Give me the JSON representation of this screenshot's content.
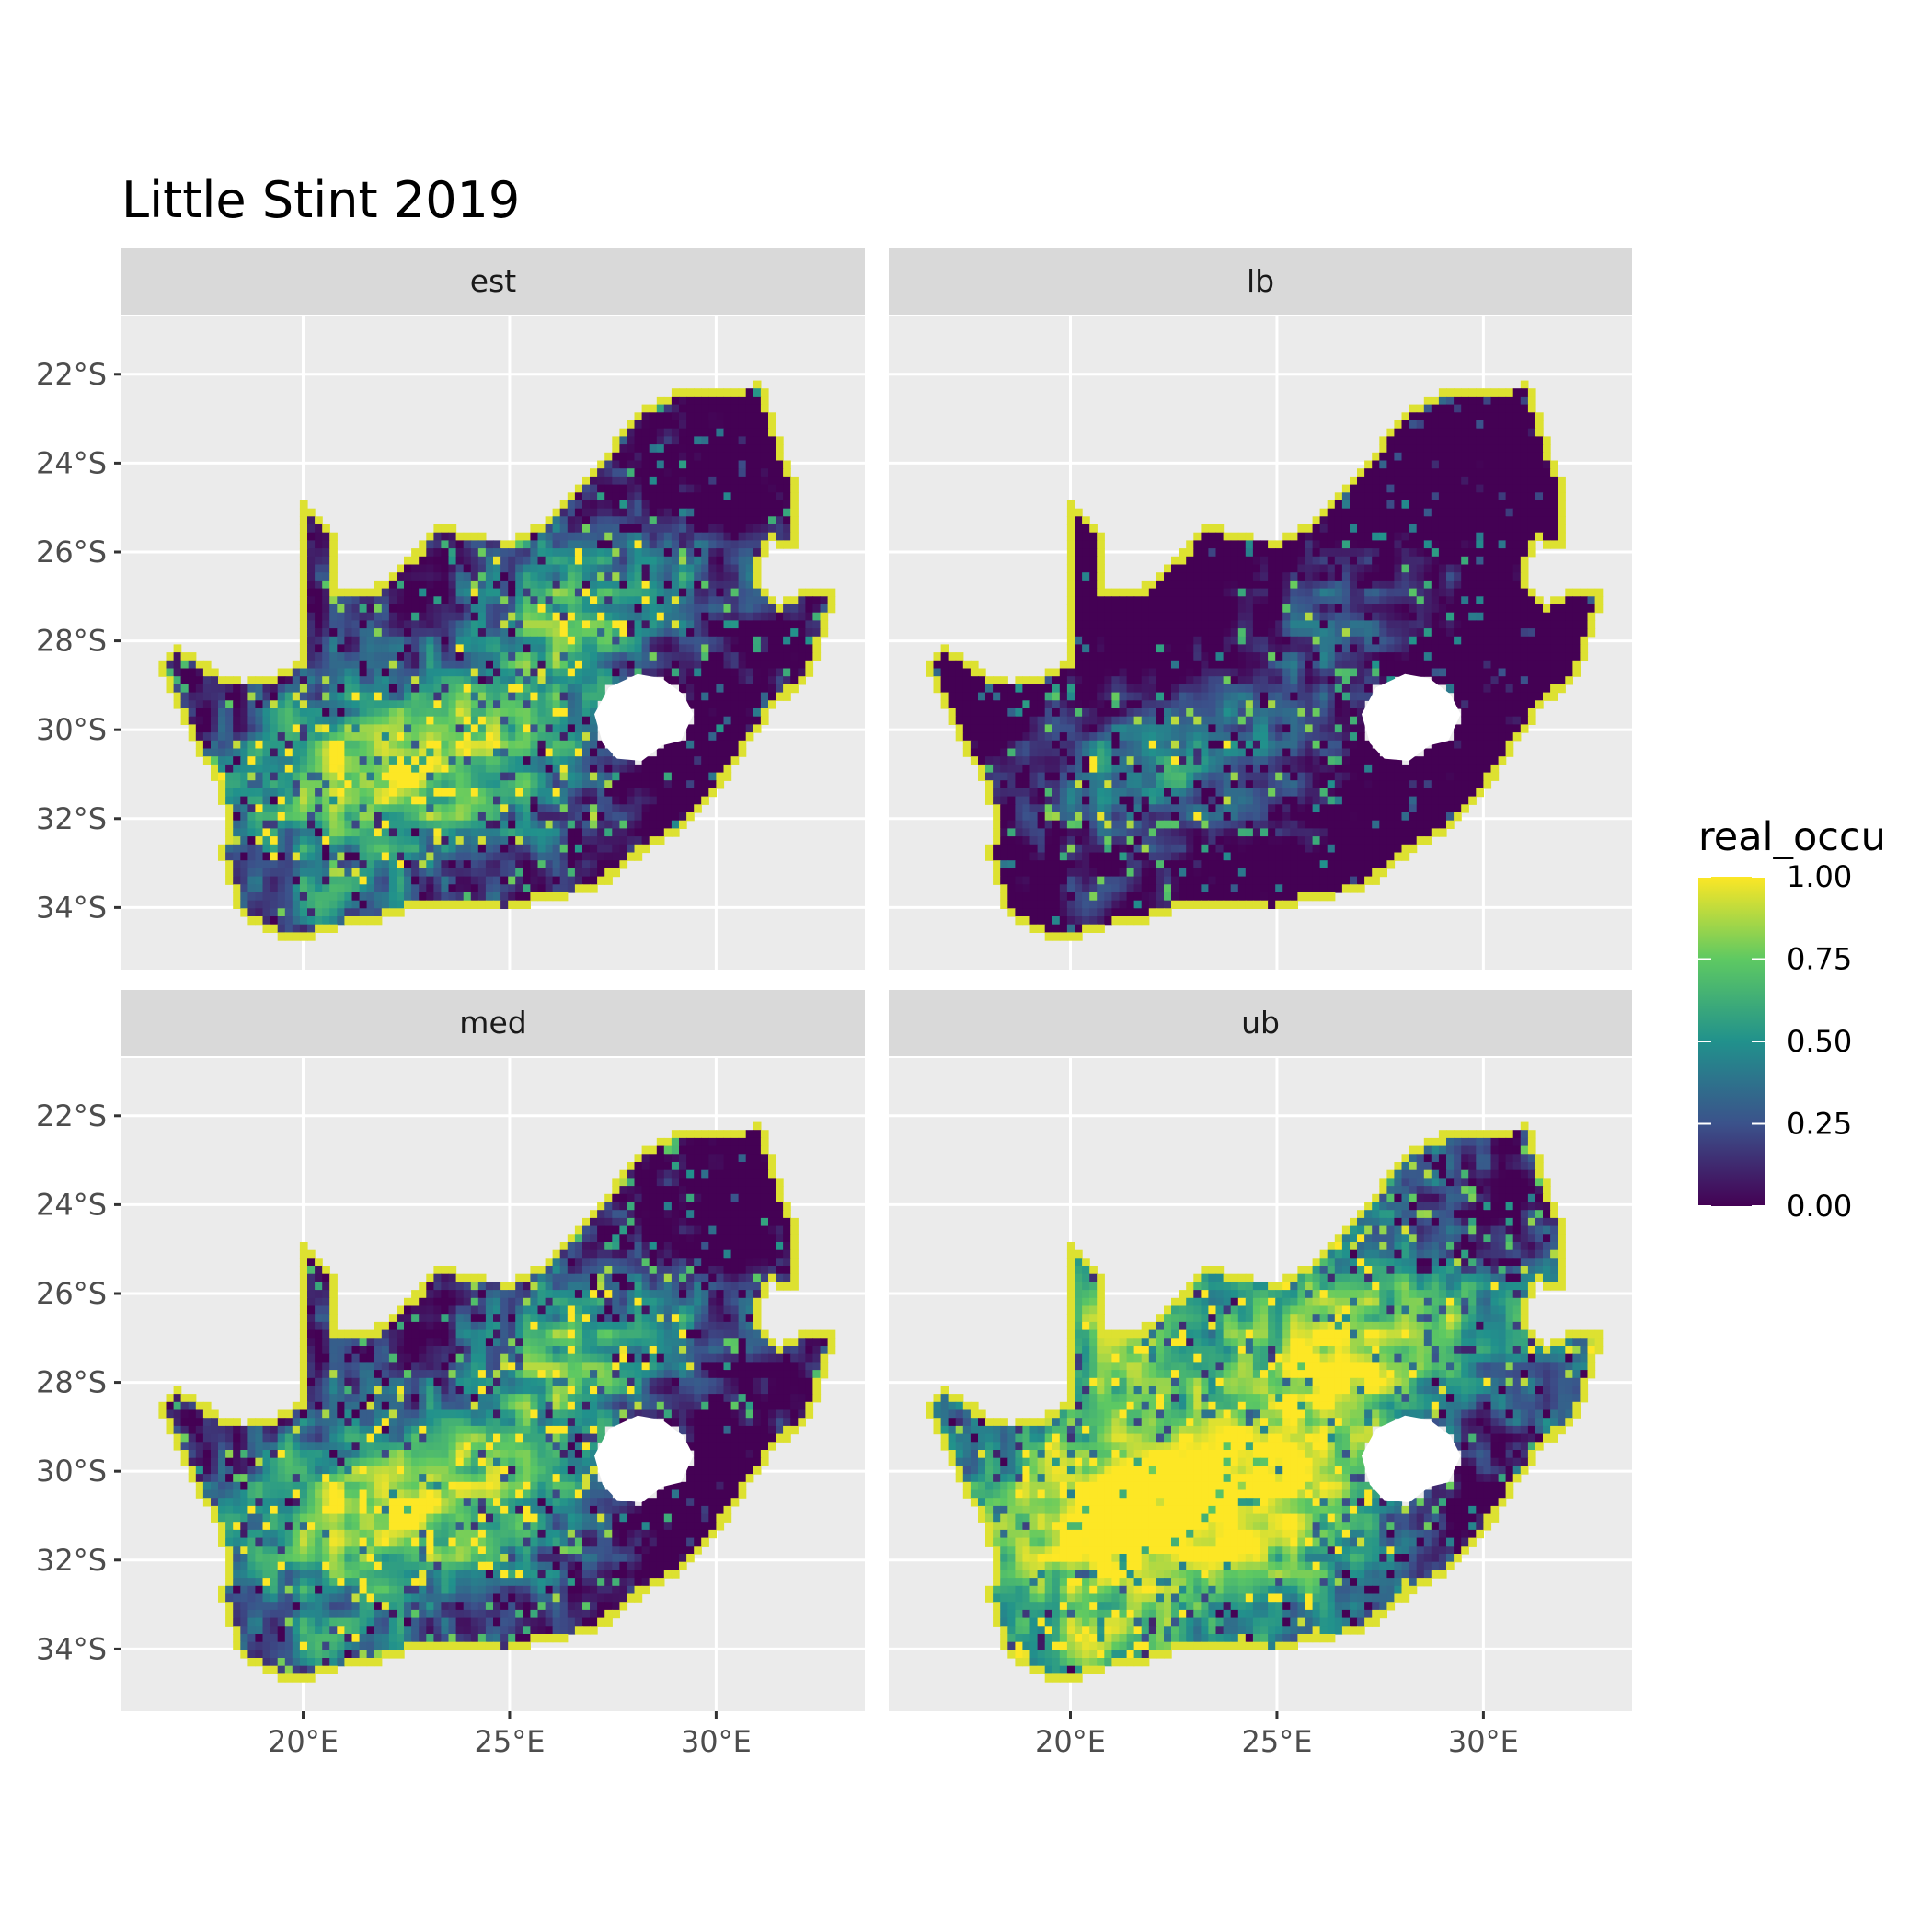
{
  "title": "Little Stint 2019",
  "colors": {
    "panel_background": "#ebebeb",
    "strip_background": "#d9d9d9",
    "gridline": "#ffffff",
    "palette": "viridis",
    "palette_stops": [
      "#440154",
      "#3b528b",
      "#21918c",
      "#5ec962",
      "#fde725"
    ]
  },
  "panels": [
    {
      "label": "est",
      "pattern": "est"
    },
    {
      "label": "lb",
      "pattern": "lb"
    },
    {
      "label": "med",
      "pattern": "med"
    },
    {
      "label": "ub",
      "pattern": "ub"
    }
  ],
  "axes": {
    "x": {
      "range": [
        15.6,
        33.6
      ],
      "breaks": [
        20,
        25,
        30
      ],
      "labels": [
        "20°E",
        "25°E",
        "30°E"
      ]
    },
    "y": {
      "range": [
        -35.4,
        -20.7
      ],
      "breaks": [
        -22,
        -24,
        -26,
        -28,
        -30,
        -32,
        -34
      ],
      "labels": [
        "22°S",
        "24°S",
        "26°S",
        "28°S",
        "30°S",
        "32°S",
        "34°S"
      ]
    }
  },
  "legend": {
    "title": "real_occu",
    "breaks": [
      1.0,
      0.75,
      0.5,
      0.25,
      0.0
    ],
    "labels": [
      "1.00",
      "0.75",
      "0.50",
      "0.25",
      "0.00"
    ],
    "limits": [
      0,
      1
    ]
  },
  "map": {
    "region": "South Africa",
    "outline_lonlat": [
      [
        16.45,
        -28.6
      ],
      [
        16.9,
        -28.1
      ],
      [
        17.4,
        -28.3
      ],
      [
        17.9,
        -28.7
      ],
      [
        18.6,
        -28.9
      ],
      [
        19.5,
        -28.7
      ],
      [
        20.0,
        -28.4
      ],
      [
        20.0,
        -24.8
      ],
      [
        20.8,
        -25.6
      ],
      [
        20.8,
        -26.8
      ],
      [
        21.7,
        -26.8
      ],
      [
        22.6,
        -26.1
      ],
      [
        23.3,
        -25.3
      ],
      [
        24.0,
        -25.6
      ],
      [
        25.0,
        -25.7
      ],
      [
        25.7,
        -25.4
      ],
      [
        26.5,
        -24.6
      ],
      [
        27.3,
        -23.8
      ],
      [
        28.0,
        -22.9
      ],
      [
        29.2,
        -22.3
      ],
      [
        30.3,
        -22.3
      ],
      [
        31.1,
        -22.2
      ],
      [
        31.6,
        -23.7
      ],
      [
        32.0,
        -24.5
      ],
      [
        32.0,
        -26.0
      ],
      [
        31.3,
        -25.8
      ],
      [
        31.0,
        -26.6
      ],
      [
        31.5,
        -27.2
      ],
      [
        32.0,
        -26.9
      ],
      [
        32.9,
        -26.9
      ],
      [
        32.6,
        -28.0
      ],
      [
        32.2,
        -28.9
      ],
      [
        31.4,
        -29.5
      ],
      [
        30.6,
        -30.6
      ],
      [
        30.1,
        -31.3
      ],
      [
        29.0,
        -32.4
      ],
      [
        28.2,
        -32.8
      ],
      [
        27.0,
        -33.7
      ],
      [
        25.8,
        -33.8
      ],
      [
        24.9,
        -34.1
      ],
      [
        23.6,
        -33.98
      ],
      [
        22.6,
        -34.05
      ],
      [
        21.5,
        -34.4
      ],
      [
        20.6,
        -34.5
      ],
      [
        20.0,
        -34.82
      ],
      [
        19.3,
        -34.6
      ],
      [
        18.8,
        -34.4
      ],
      [
        18.4,
        -34.1
      ],
      [
        18.2,
        -33.4
      ],
      [
        17.9,
        -32.7
      ],
      [
        18.2,
        -32.3
      ],
      [
        17.95,
        -31.3
      ],
      [
        17.1,
        -29.9
      ],
      [
        16.45,
        -28.6
      ]
    ],
    "lesotho_lonlat": [
      [
        27.05,
        -29.65
      ],
      [
        27.4,
        -29.05
      ],
      [
        28.1,
        -28.75
      ],
      [
        28.7,
        -28.85
      ],
      [
        29.2,
        -29.2
      ],
      [
        29.45,
        -29.65
      ],
      [
        29.15,
        -30.25
      ],
      [
        28.7,
        -30.35
      ],
      [
        28.2,
        -30.7
      ],
      [
        27.6,
        -30.65
      ],
      [
        27.25,
        -30.3
      ],
      [
        27.05,
        -29.65
      ]
    ]
  }
}
